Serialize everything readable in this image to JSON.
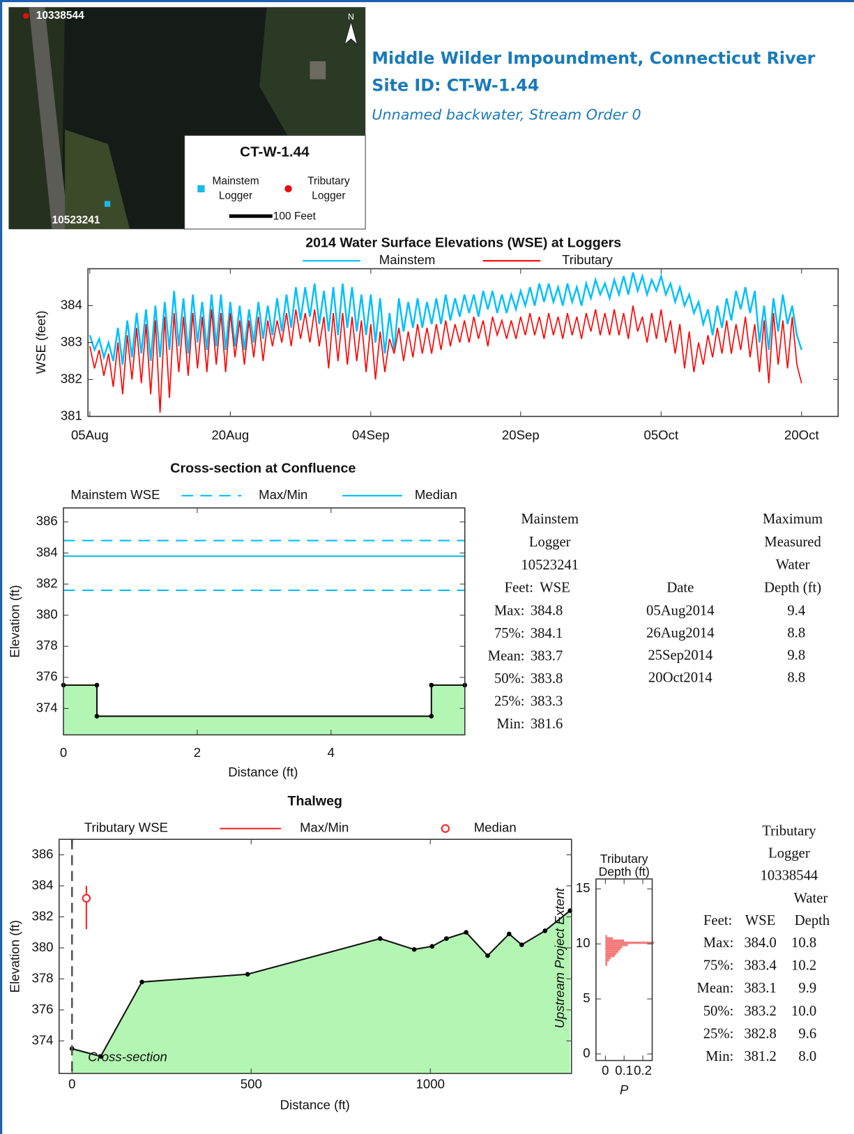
{
  "header": {
    "title": "Middle Wilder Impoundment, Connecticut River",
    "site": "Site ID: CT-W-1.44",
    "subtitle": "Unnamed backwater, Stream Order 0"
  },
  "map": {
    "title": "CT-W-1.44",
    "north": "N",
    "scale": "100 Feet",
    "loggers": [
      {
        "id": "10338544"
      },
      {
        "id": "10523241"
      }
    ],
    "legend": [
      [
        "Mainstem",
        "Logger"
      ],
      [
        "Tributary",
        "Logger"
      ]
    ]
  },
  "chart_data": [
    {
      "type": "line",
      "title": "2014 Water Surface Elevations (WSE) at Loggers",
      "y_label": "WSE (feet)",
      "x": [
        0,
        0.5,
        1,
        1.5,
        2,
        2.5,
        3,
        3.5,
        4,
        4.5,
        5,
        5.5,
        6,
        6.5,
        7,
        7.5,
        8,
        8.5,
        9,
        9.5,
        10,
        10.5,
        11,
        11.5,
        12,
        12.5,
        13,
        13.5,
        14,
        14.5,
        15,
        15.5,
        16,
        16.5,
        17,
        17.5,
        18,
        18.5,
        19,
        19.5,
        20,
        20.5,
        21,
        21.5,
        22,
        22.5,
        23,
        23.5,
        24,
        24.5,
        25,
        25.5,
        26,
        26.5,
        27,
        27.5,
        28,
        28.5,
        29,
        29.5,
        30,
        30.5,
        31,
        31.5,
        32,
        32.5,
        33,
        33.5,
        34,
        34.5,
        35,
        35.5,
        36,
        36.5,
        37,
        37.5,
        38,
        38.5,
        39,
        39.5,
        40,
        40.5,
        41,
        41.5,
        42,
        42.5,
        43,
        43.5,
        44,
        44.5,
        45,
        45.5,
        46,
        46.5,
        47,
        47.5,
        48,
        48.5,
        49,
        49.5,
        50,
        50.5,
        51,
        51.5,
        52,
        52.5,
        53,
        53.5,
        54,
        54.5,
        55,
        55.5,
        56,
        56.5,
        57,
        57.5,
        58,
        58.5,
        59,
        59.5,
        60,
        60.5,
        61,
        61.5,
        62,
        62.5,
        63,
        63.5,
        64,
        64.5,
        65,
        65.5,
        66,
        66.5,
        67,
        67.5,
        68,
        68.5,
        69,
        69.5,
        70,
        70.5,
        71,
        71.5,
        72,
        72.5,
        73,
        73.5,
        74,
        74.5,
        75,
        75.5,
        76
      ],
      "series": [
        {
          "name": "Mainstem",
          "color": "#00bfff",
          "values": [
            383.2,
            382.8,
            383.1,
            382.6,
            383.0,
            382.5,
            383.4,
            382.4,
            383.6,
            382.6,
            383.8,
            382.7,
            383.9,
            382.5,
            384.0,
            382.6,
            384.1,
            382.8,
            384.4,
            382.9,
            384.2,
            382.7,
            384.3,
            383.0,
            384.1,
            382.8,
            384.3,
            382.9,
            384.3,
            382.8,
            384.1,
            382.9,
            384.0,
            382.8,
            383.9,
            383.0,
            384.1,
            383.1,
            384.0,
            383.2,
            384.2,
            383.3,
            384.3,
            383.4,
            384.5,
            383.6,
            384.5,
            383.7,
            384.6,
            383.5,
            384.4,
            383.3,
            384.5,
            383.2,
            384.6,
            383.4,
            384.5,
            383.3,
            384.3,
            383.2,
            384.3,
            383.0,
            384.2,
            382.7,
            383.8,
            382.8,
            384.2,
            383.3,
            384.1,
            383.4,
            384.2,
            383.4,
            384.1,
            383.5,
            384.2,
            383.5,
            384.3,
            383.6,
            384.2,
            383.7,
            384.3,
            383.8,
            384.3,
            383.7,
            384.4,
            383.9,
            384.4,
            383.8,
            384.3,
            383.8,
            384.3,
            383.9,
            384.4,
            384.0,
            384.5,
            384.0,
            384.6,
            384.1,
            384.6,
            384.1,
            384.5,
            384.0,
            384.6,
            384.1,
            384.5,
            384.0,
            384.6,
            384.2,
            384.7,
            384.3,
            384.6,
            384.2,
            384.7,
            384.3,
            384.8,
            384.3,
            384.9,
            384.4,
            384.8,
            384.3,
            384.7,
            384.4,
            384.8,
            384.3,
            384.6,
            384.1,
            384.5,
            384.0,
            384.3,
            383.8,
            384.1,
            383.5,
            383.9,
            383.2,
            384.0,
            383.4,
            384.2,
            383.6,
            384.4,
            383.9,
            384.5,
            383.8,
            384.4,
            383.0,
            384.0,
            382.8,
            384.2,
            383.3,
            384.3,
            383.5,
            384.0,
            383.2,
            382.8
          ]
        },
        {
          "name": "Tributary",
          "color": "#ff0000",
          "values": [
            382.9,
            382.3,
            382.8,
            382.1,
            382.7,
            381.8,
            383.0,
            381.6,
            383.2,
            382.0,
            383.4,
            381.9,
            383.5,
            381.6,
            383.6,
            381.1,
            383.7,
            381.5,
            383.8,
            382.2,
            383.7,
            382.1,
            383.8,
            382.3,
            383.7,
            382.2,
            383.9,
            382.4,
            383.8,
            382.2,
            383.8,
            382.6,
            383.6,
            382.4,
            383.6,
            382.6,
            383.7,
            382.5,
            383.6,
            382.9,
            383.6,
            383.0,
            383.8,
            382.9,
            383.9,
            383.1,
            383.8,
            383.0,
            383.9,
            382.9,
            383.7,
            382.3,
            383.8,
            382.5,
            383.8,
            382.4,
            383.7,
            382.5,
            383.6,
            382.2,
            383.5,
            382.0,
            383.3,
            382.2,
            383.1,
            382.7,
            383.4,
            382.5,
            383.3,
            382.6,
            383.5,
            382.7,
            383.4,
            382.7,
            383.5,
            382.8,
            383.6,
            382.9,
            383.5,
            383.0,
            383.6,
            383.0,
            383.7,
            383.1,
            383.6,
            382.9,
            383.7,
            383.2,
            383.6,
            383.1,
            383.6,
            383.1,
            383.7,
            383.2,
            383.8,
            383.2,
            383.7,
            383.1,
            383.8,
            383.2,
            383.7,
            383.1,
            383.8,
            383.2,
            383.7,
            383.1,
            383.8,
            383.3,
            383.9,
            383.2,
            383.8,
            383.2,
            383.9,
            383.2,
            383.8,
            383.1,
            384.0,
            383.3,
            383.7,
            383.0,
            383.8,
            383.1,
            383.9,
            383.0,
            383.6,
            382.7,
            383.5,
            382.3,
            383.3,
            382.2,
            383.0,
            382.4,
            383.2,
            382.6,
            383.4,
            382.7,
            383.6,
            382.7,
            383.5,
            382.8,
            383.7,
            382.6,
            383.5,
            382.2,
            383.6,
            381.9,
            383.8,
            382.4,
            383.6,
            382.3,
            383.7,
            382.4,
            381.9
          ]
        }
      ],
      "xlim": [
        -0.2,
        79.9
      ],
      "xticks": [
        {
          "value": 0,
          "label": "05Aug"
        },
        {
          "value": 15,
          "label": "20Aug"
        },
        {
          "value": 30,
          "label": "04Sep"
        },
        {
          "value": 46,
          "label": "20Sep"
        },
        {
          "value": 61,
          "label": "05Oct"
        },
        {
          "value": 76,
          "label": "20Oct"
        }
      ],
      "ylim": [
        381,
        385
      ],
      "yticks": [
        381,
        382,
        383,
        384
      ]
    },
    {
      "type": "area",
      "title": "Cross-section at Confluence",
      "x_label": "Distance (ft)",
      "y_label": "Elevation (ft)",
      "legend_title": "Mainstem WSE",
      "legend": [
        "Max/Min",
        "Median"
      ],
      "color": "#00bfff",
      "fill": "#b3f5b3",
      "x": [
        0,
        0.5,
        0.5,
        5.5,
        5.5,
        6
      ],
      "values": [
        375.5,
        375.5,
        373.5,
        373.5,
        375.5,
        375.5
      ],
      "xlim": [
        0,
        6
      ],
      "xticks": [
        0,
        2,
        4
      ],
      "ylim": [
        372.3,
        386.9
      ],
      "yticks": [
        374,
        376,
        378,
        380,
        382,
        384,
        386
      ]
    },
    {
      "type": "area",
      "title": "Thalweg",
      "x_label": "Distance (ft)",
      "y_label": "Elevation (ft)",
      "legend_title": "Tributary WSE",
      "legend": [
        "Max/Min",
        "Median"
      ],
      "color": "#ff2020",
      "fill": "#b3f5b3",
      "annotations": [
        "Cross-section",
        "Upstream Project Extent"
      ],
      "x": [
        0,
        80,
        195,
        490,
        860,
        955,
        1005,
        1045,
        1100,
        1160,
        1220,
        1255,
        1320,
        1390
      ],
      "values": [
        373.5,
        373.0,
        377.8,
        378.3,
        380.6,
        379.9,
        380.1,
        380.6,
        381.0,
        379.5,
        380.9,
        380.2,
        381.1,
        382.4
      ],
      "xlim": [
        -36,
        1394
      ],
      "xticks": [
        0,
        500,
        1000
      ],
      "ylim": [
        371.9,
        387
      ],
      "yticks": [
        374,
        376,
        378,
        380,
        382,
        384,
        386
      ]
    },
    {
      "type": "histogram",
      "title": [
        "Tributary",
        "Depth (ft)"
      ],
      "x_label": "P",
      "color": "#f47a7a",
      "bins": [
        8.0,
        8.2,
        8.4,
        8.6,
        8.8,
        9.0,
        9.2,
        9.4,
        9.6,
        9.8,
        10.0,
        10.2,
        10.4,
        10.6,
        10.8
      ],
      "values": [
        0.01,
        0.01,
        0.02,
        0.03,
        0.05,
        0.06,
        0.07,
        0.08,
        0.09,
        0.12,
        0.26,
        0.1,
        0.04,
        0.01
      ],
      "xlim": [
        -0.05,
        0.25
      ],
      "xticks": [
        0,
        0.1,
        0.2
      ],
      "ylim": [
        -0.6,
        15.9
      ],
      "yticks": [
        0,
        5,
        10,
        15
      ]
    }
  ],
  "tables": {
    "mainstem": {
      "header": [
        "Mainstem",
        "Logger",
        "10523241"
      ],
      "columns": [
        "Feet:",
        "WSE"
      ],
      "rows": [
        [
          "Max:",
          384.8
        ],
        [
          "75%:",
          384.1
        ],
        [
          "Mean:",
          383.7
        ],
        [
          "50%:",
          383.8
        ],
        [
          "25%:",
          383.3
        ],
        [
          "Min:",
          381.6
        ]
      ]
    },
    "depth": {
      "header": [
        "Maximum",
        "Measured",
        "Water",
        "Depth (ft)"
      ],
      "date_header": "Date",
      "rows": [
        [
          "05Aug2014",
          9.4
        ],
        [
          "26Aug2014",
          8.8
        ],
        [
          "25Sep2014",
          9.8
        ],
        [
          "20Oct2014",
          8.8
        ]
      ]
    },
    "tributary": {
      "header": [
        "Tributary",
        "Logger",
        "10338544"
      ],
      "subheader": "Water",
      "columns": [
        "Feet:",
        "WSE",
        "Depth"
      ],
      "rows": [
        [
          "Max:",
          "384.0",
          10.8
        ],
        [
          "75%:",
          383.4,
          10.2
        ],
        [
          "Mean:",
          383.1,
          9.9
        ],
        [
          "50%:",
          383.2,
          "10.0"
        ],
        [
          "25%:",
          382.8,
          9.6
        ],
        [
          "Min:",
          381.2,
          "8.0"
        ]
      ]
    }
  }
}
